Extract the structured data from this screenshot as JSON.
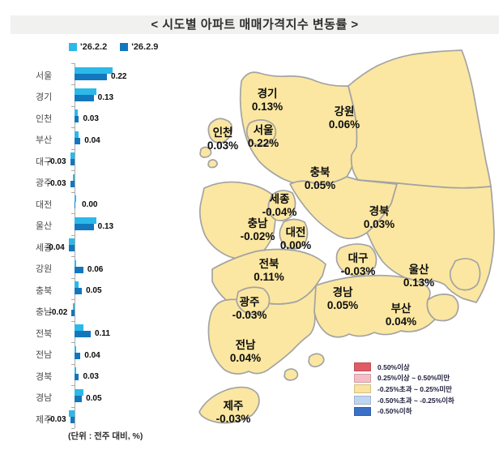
{
  "title": "<  시도별  아파트  매매가격지수  변동률  >",
  "chart_data": {
    "type": "bar",
    "orientation": "horizontal",
    "title": "시도별 아파트 매매가격지수 변동률",
    "unit_note": "(단위 : 전주 대비, %)",
    "categories": [
      "서울",
      "경기",
      "인천",
      "부산",
      "대구",
      "광주",
      "대전",
      "울산",
      "세종",
      "강원",
      "충북",
      "충남",
      "전북",
      "전남",
      "경북",
      "경남",
      "제주"
    ],
    "series": [
      {
        "name": "'26.2.2",
        "color": "#2cb9e9",
        "values": [
          0.26,
          0.15,
          0.02,
          0.03,
          -0.03,
          -0.01,
          0.01,
          0.15,
          -0.04,
          0.01,
          0.03,
          -0.01,
          0.06,
          0.01,
          0.01,
          0.06,
          -0.04
        ],
        "note": "values estimated from bar lengths (unlabeled series)"
      },
      {
        "name": "'26.2.9",
        "color": "#1377be",
        "values": [
          0.22,
          0.13,
          0.03,
          0.04,
          -0.03,
          -0.03,
          0.0,
          0.13,
          -0.04,
          0.06,
          0.05,
          -0.02,
          0.11,
          0.04,
          0.03,
          0.05,
          -0.03
        ]
      }
    ],
    "value_labels": [
      "0.22",
      "0.13",
      "0.03",
      "0.04",
      "-0.03",
      "-0.03",
      "0.00",
      "0.13",
      "-0.04",
      "0.06",
      "0.05",
      "-0.02",
      "0.11",
      "0.04",
      "0.03",
      "0.05",
      "-0.03"
    ],
    "xlim": [
      -0.1,
      0.3
    ],
    "grid": false,
    "legend_position": "top-left"
  },
  "map": {
    "fill_color": "#fbe7a1",
    "border_color": "#a3a3a3",
    "regions": [
      {
        "name": "경기",
        "value": "0.13%"
      },
      {
        "name": "강원",
        "value": "0.06%"
      },
      {
        "name": "인천",
        "value": "0.03%"
      },
      {
        "name": "서울",
        "value": "0.22%"
      },
      {
        "name": "충북",
        "value": "0.05%"
      },
      {
        "name": "세종",
        "value": "-0.04%"
      },
      {
        "name": "경북",
        "value": "0.03%"
      },
      {
        "name": "충남",
        "value": "-0.02%"
      },
      {
        "name": "대전",
        "value": "0.00%"
      },
      {
        "name": "대구",
        "value": "-0.03%"
      },
      {
        "name": "울산",
        "value": "0.13%"
      },
      {
        "name": "전북",
        "value": "0.11%"
      },
      {
        "name": "광주",
        "value": "-0.03%"
      },
      {
        "name": "경남",
        "value": "0.05%"
      },
      {
        "name": "부산",
        "value": "0.04%"
      },
      {
        "name": "전남",
        "value": "0.04%"
      },
      {
        "name": "제주",
        "value": "-0.03%"
      }
    ],
    "legend": [
      {
        "label": "0.50%이상",
        "color": "#e25b64"
      },
      {
        "label": "0.25%이상 ~ 0.50%미만",
        "color": "#f5bdc5"
      },
      {
        "label": "-0.25%초과 ~ 0.25%미만",
        "color": "#fae39e"
      },
      {
        "label": "-0.50%초과 ~ -0.25%이하",
        "color": "#bfd4f0"
      },
      {
        "label": "-0.50%이하",
        "color": "#3a70c8"
      }
    ]
  }
}
